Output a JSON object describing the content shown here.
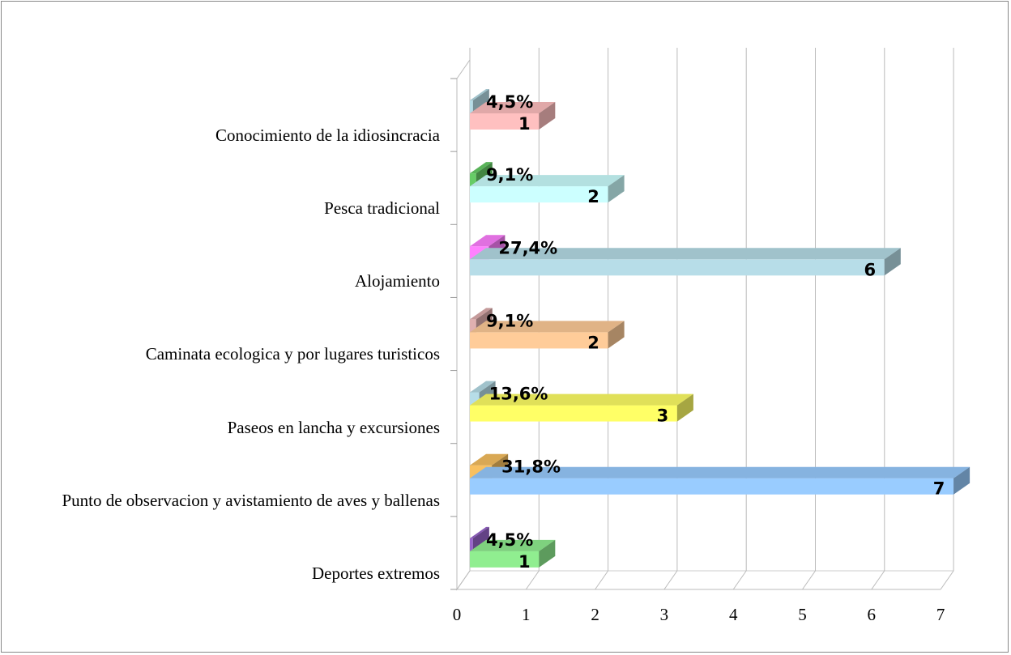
{
  "chart_data": {
    "type": "bar",
    "orientation": "horizontal",
    "categories": [
      "Conocimiento de la idiosincracia",
      "Pesca tradicional",
      "Alojamiento",
      "Caminata  ecologica y por lugares turisticos",
      "Paseos en lancha y excursiones",
      "Punto de observacion y avistamiento de aves y ballenas",
      "Deportes extremos"
    ],
    "series": [
      {
        "values": [
          0.045,
          0.091,
          0.274,
          0.091,
          0.136,
          0.318,
          0.045
        ],
        "value_labels": [
          "4,5%",
          "9,1%",
          "27,4%",
          "9,1%",
          "13,6%",
          "31,8%",
          "4,5%"
        ],
        "colors": [
          "#b7dde8",
          "#66cc66",
          "#ff80ff",
          "#e0b0b0",
          "#b7dde8",
          "#f8c060",
          "#9966cc"
        ]
      },
      {
        "values": [
          1,
          2,
          6,
          2,
          3,
          7,
          1
        ],
        "colors": [
          "#ffc0c0",
          "#ccffff",
          "#b7dde8",
          "#ffcc99",
          "#ffff66",
          "#99ccff",
          "#90ee90"
        ]
      }
    ],
    "xlim": [
      0,
      7
    ],
    "xticks": [
      0,
      1,
      2,
      3,
      4,
      5,
      6,
      7
    ],
    "grid": true
  }
}
